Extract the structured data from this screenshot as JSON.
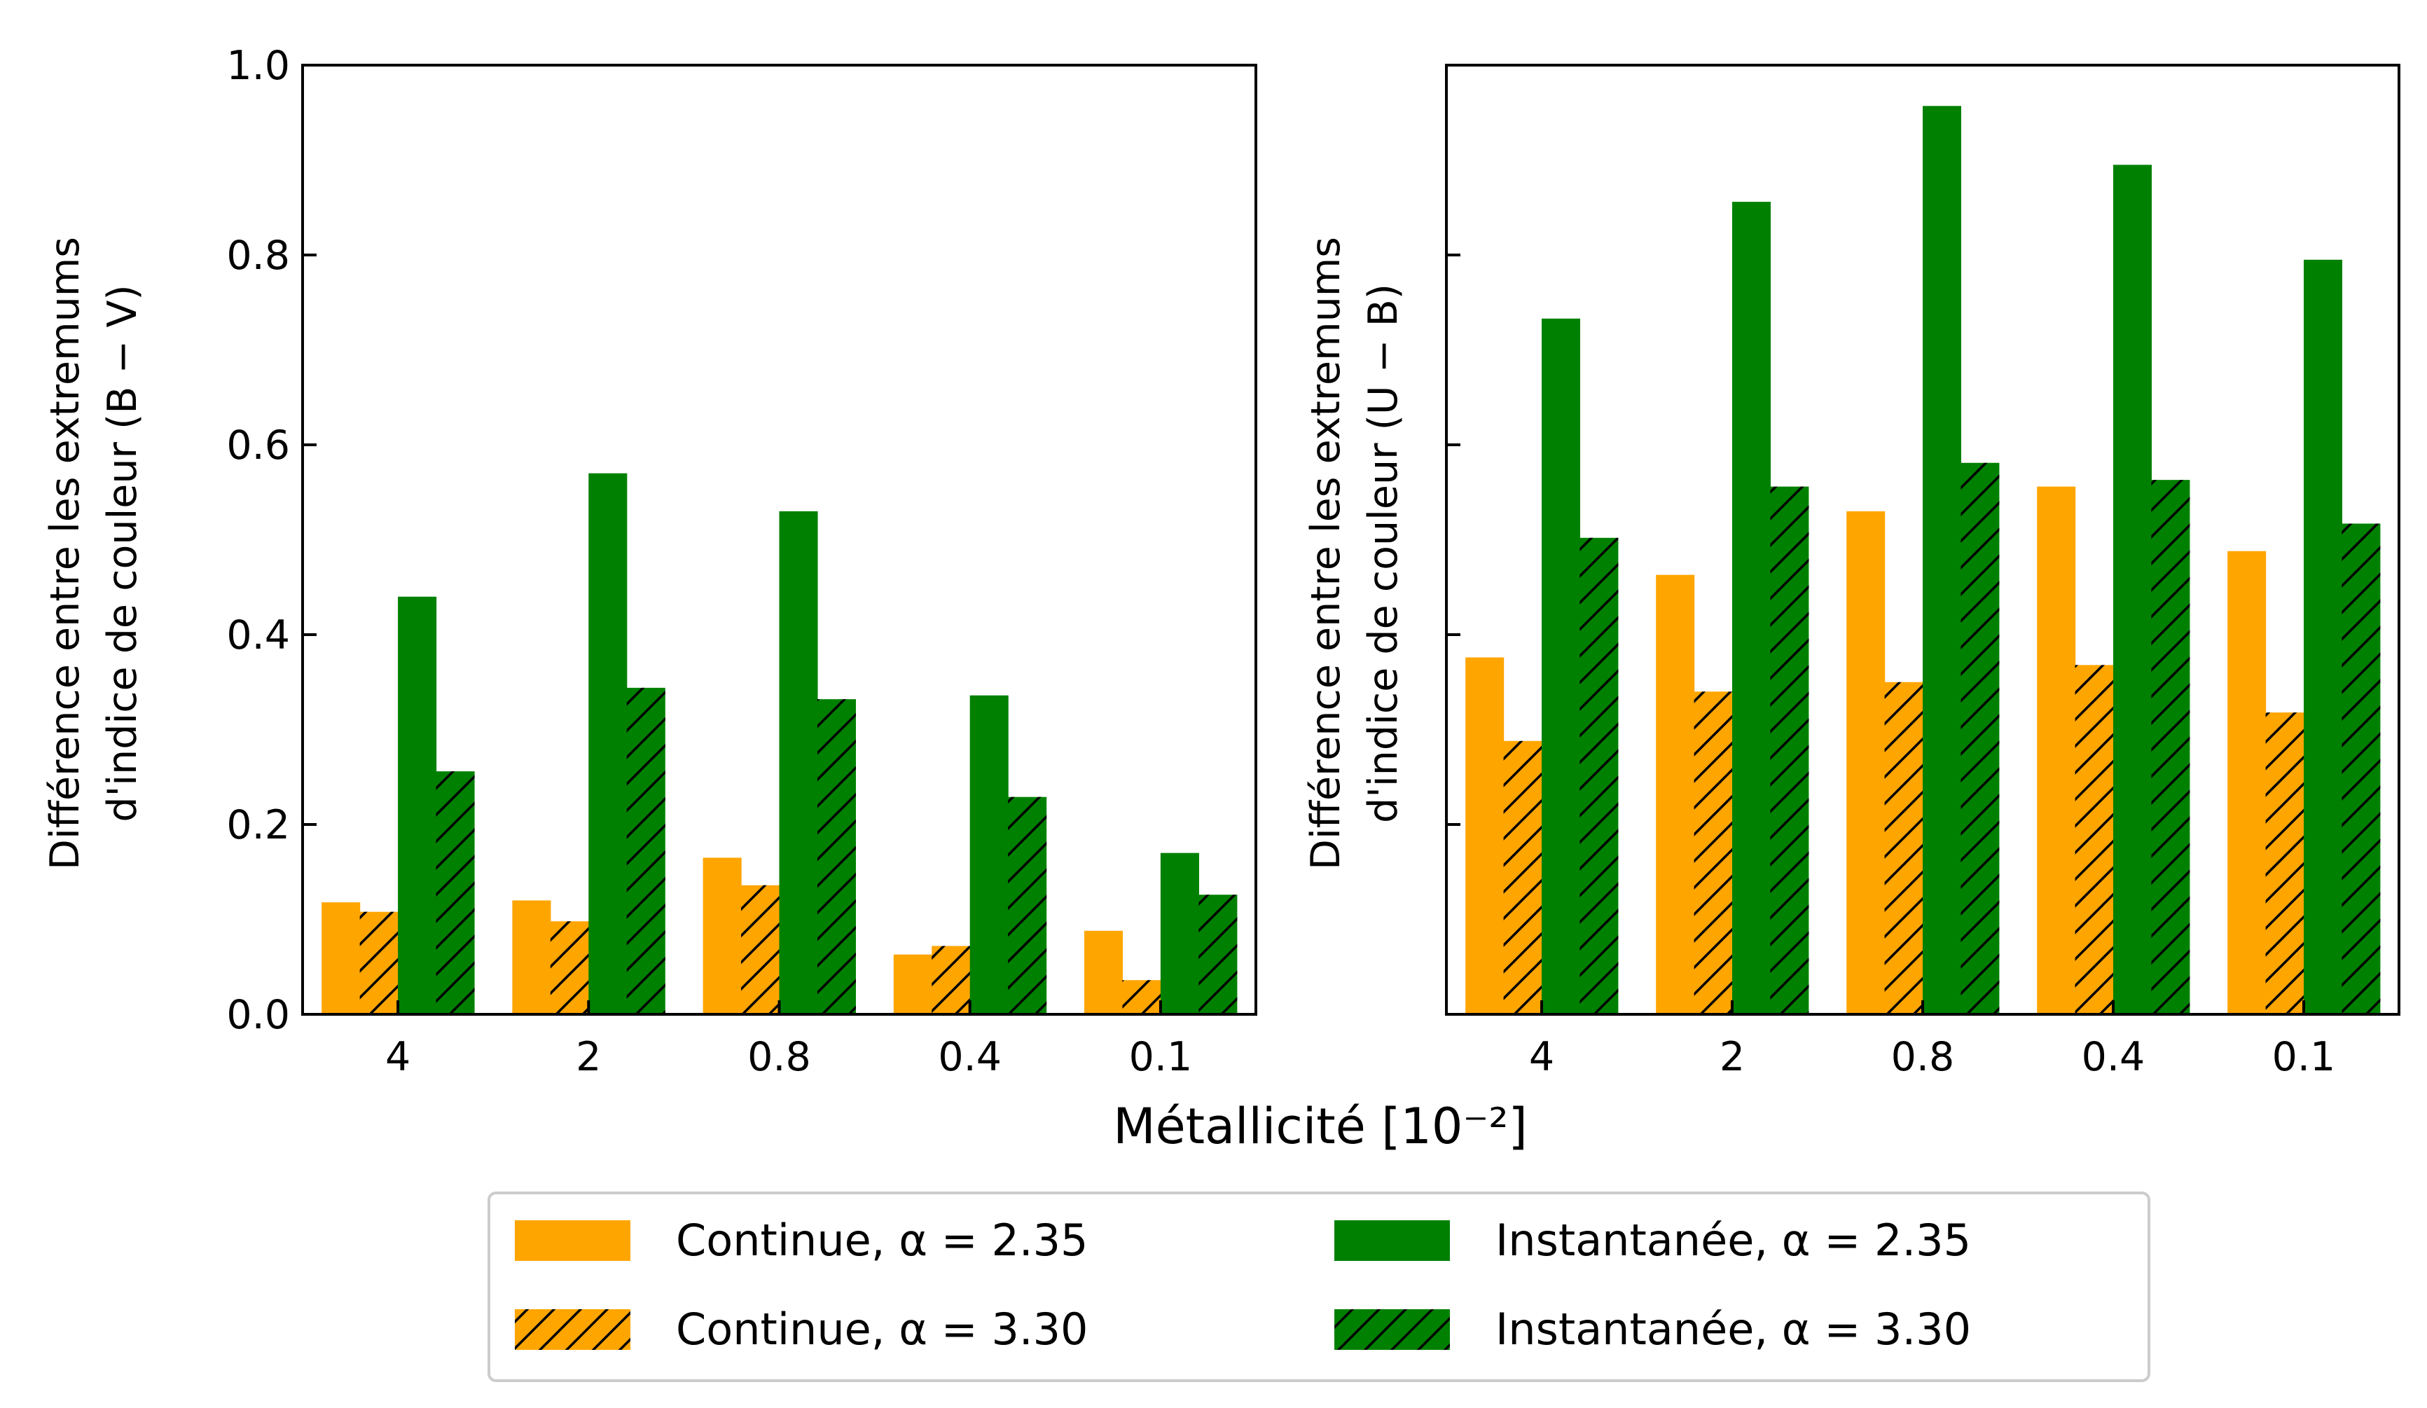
{
  "chart_data": [
    {
      "type": "bar",
      "panel": "left",
      "categories": [
        "4",
        "2",
        "0.8",
        "0.4",
        "0.1"
      ],
      "ylabel_line1": "Différence entre les extremums",
      "ylabel_line2": "d'indice de couleur (B − V)",
      "ylim": [
        0,
        1.0
      ],
      "yticks": [
        "0.0",
        "0.2",
        "0.4",
        "0.6",
        "0.8",
        "1.0"
      ],
      "show_ytick_labels": true,
      "series": [
        {
          "name": "Continue, α = 2.35",
          "color": "#FFA500",
          "hatch": false,
          "values": [
            0.118,
            0.12,
            0.165,
            0.063,
            0.088
          ]
        },
        {
          "name": "Continue, α = 3.30",
          "color": "#FFA500",
          "hatch": true,
          "values": [
            0.108,
            0.098,
            0.136,
            0.072,
            0.036
          ]
        },
        {
          "name": "Instantanée, α = 2.35",
          "color": "#008000",
          "hatch": false,
          "values": [
            0.44,
            0.57,
            0.53,
            0.336,
            0.17
          ]
        },
        {
          "name": "Instantanée, α = 3.30",
          "color": "#008000",
          "hatch": true,
          "values": [
            0.256,
            0.344,
            0.332,
            0.229,
            0.126
          ]
        }
      ]
    },
    {
      "type": "bar",
      "panel": "right",
      "categories": [
        "4",
        "2",
        "0.8",
        "0.4",
        "0.1"
      ],
      "ylabel_line1": "Différence entre les extremums",
      "ylabel_line2": "d'indice de couleur (U − B)",
      "ylim": [
        0,
        1.0
      ],
      "yticks": [
        "0.0",
        "0.2",
        "0.4",
        "0.6",
        "0.8",
        "1.0"
      ],
      "show_ytick_labels": false,
      "series": [
        {
          "name": "Continue, α = 2.35",
          "color": "#FFA500",
          "hatch": false,
          "values": [
            0.376,
            0.463,
            0.53,
            0.556,
            0.488
          ]
        },
        {
          "name": "Continue, α = 3.30",
          "color": "#FFA500",
          "hatch": true,
          "values": [
            0.288,
            0.34,
            0.35,
            0.368,
            0.318
          ]
        },
        {
          "name": "Instantanée, α = 2.35",
          "color": "#008000",
          "hatch": false,
          "values": [
            0.733,
            0.856,
            0.957,
            0.895,
            0.795
          ]
        },
        {
          "name": "Instantanée, α = 3.30",
          "color": "#008000",
          "hatch": true,
          "values": [
            0.502,
            0.556,
            0.581,
            0.563,
            0.517
          ]
        }
      ]
    }
  ],
  "xlabel": "Métallicité [10⁻²]",
  "legend": {
    "placement": "bottom-center",
    "entries": [
      {
        "label": "Continue, α = 2.35",
        "color": "#FFA500",
        "hatch": false
      },
      {
        "label": "Continue, α = 3.30",
        "color": "#FFA500",
        "hatch": true
      },
      {
        "label": "Instantanée, α = 2.35",
        "color": "#008000",
        "hatch": false
      },
      {
        "label": "Instantanée, α = 3.30",
        "color": "#008000",
        "hatch": true
      }
    ]
  }
}
